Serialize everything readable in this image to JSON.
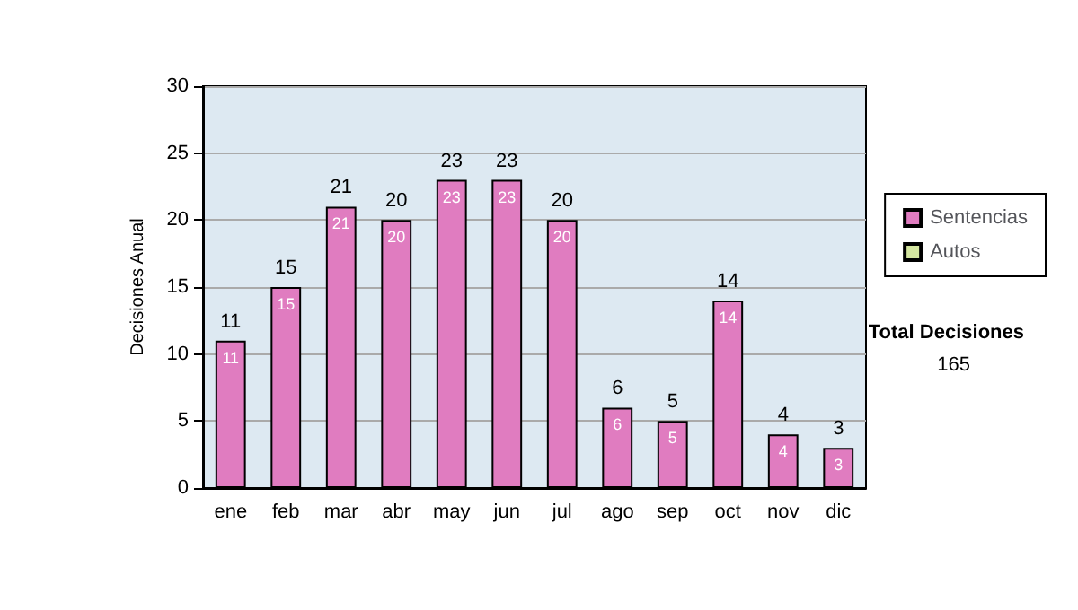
{
  "chart_data": {
    "type": "bar",
    "stacked": true,
    "ylabel": "Decisiones Anual",
    "categories": [
      "ene",
      "feb",
      "mar",
      "abr",
      "may",
      "jun",
      "jul",
      "ago",
      "sep",
      "oct",
      "nov",
      "dic"
    ],
    "series": [
      {
        "name": "Sentencias",
        "color": "#e07cc0",
        "values": [
          11,
          15,
          21,
          20,
          23,
          23,
          20,
          6,
          5,
          14,
          4,
          3
        ],
        "value_labels": [
          "11",
          "15",
          "21",
          "20",
          "23",
          "23",
          "20",
          "6",
          "5",
          "14",
          "4",
          "3"
        ]
      },
      {
        "name": "Autos",
        "color": "#d4e6a0",
        "values": [
          0,
          0,
          0,
          0,
          0,
          0,
          0,
          0,
          0,
          0,
          0,
          0
        ]
      }
    ],
    "totals": [
      "11",
      "15",
      "21",
      "20",
      "23",
      "23",
      "20",
      "6",
      "5",
      "14",
      "4",
      "3"
    ],
    "ylim": [
      0,
      30
    ],
    "yticks": [
      0,
      5,
      10,
      15,
      20,
      25,
      30
    ],
    "grid": "y",
    "legend": "right",
    "annotations": [
      "Total Decisiones",
      "165"
    ]
  }
}
